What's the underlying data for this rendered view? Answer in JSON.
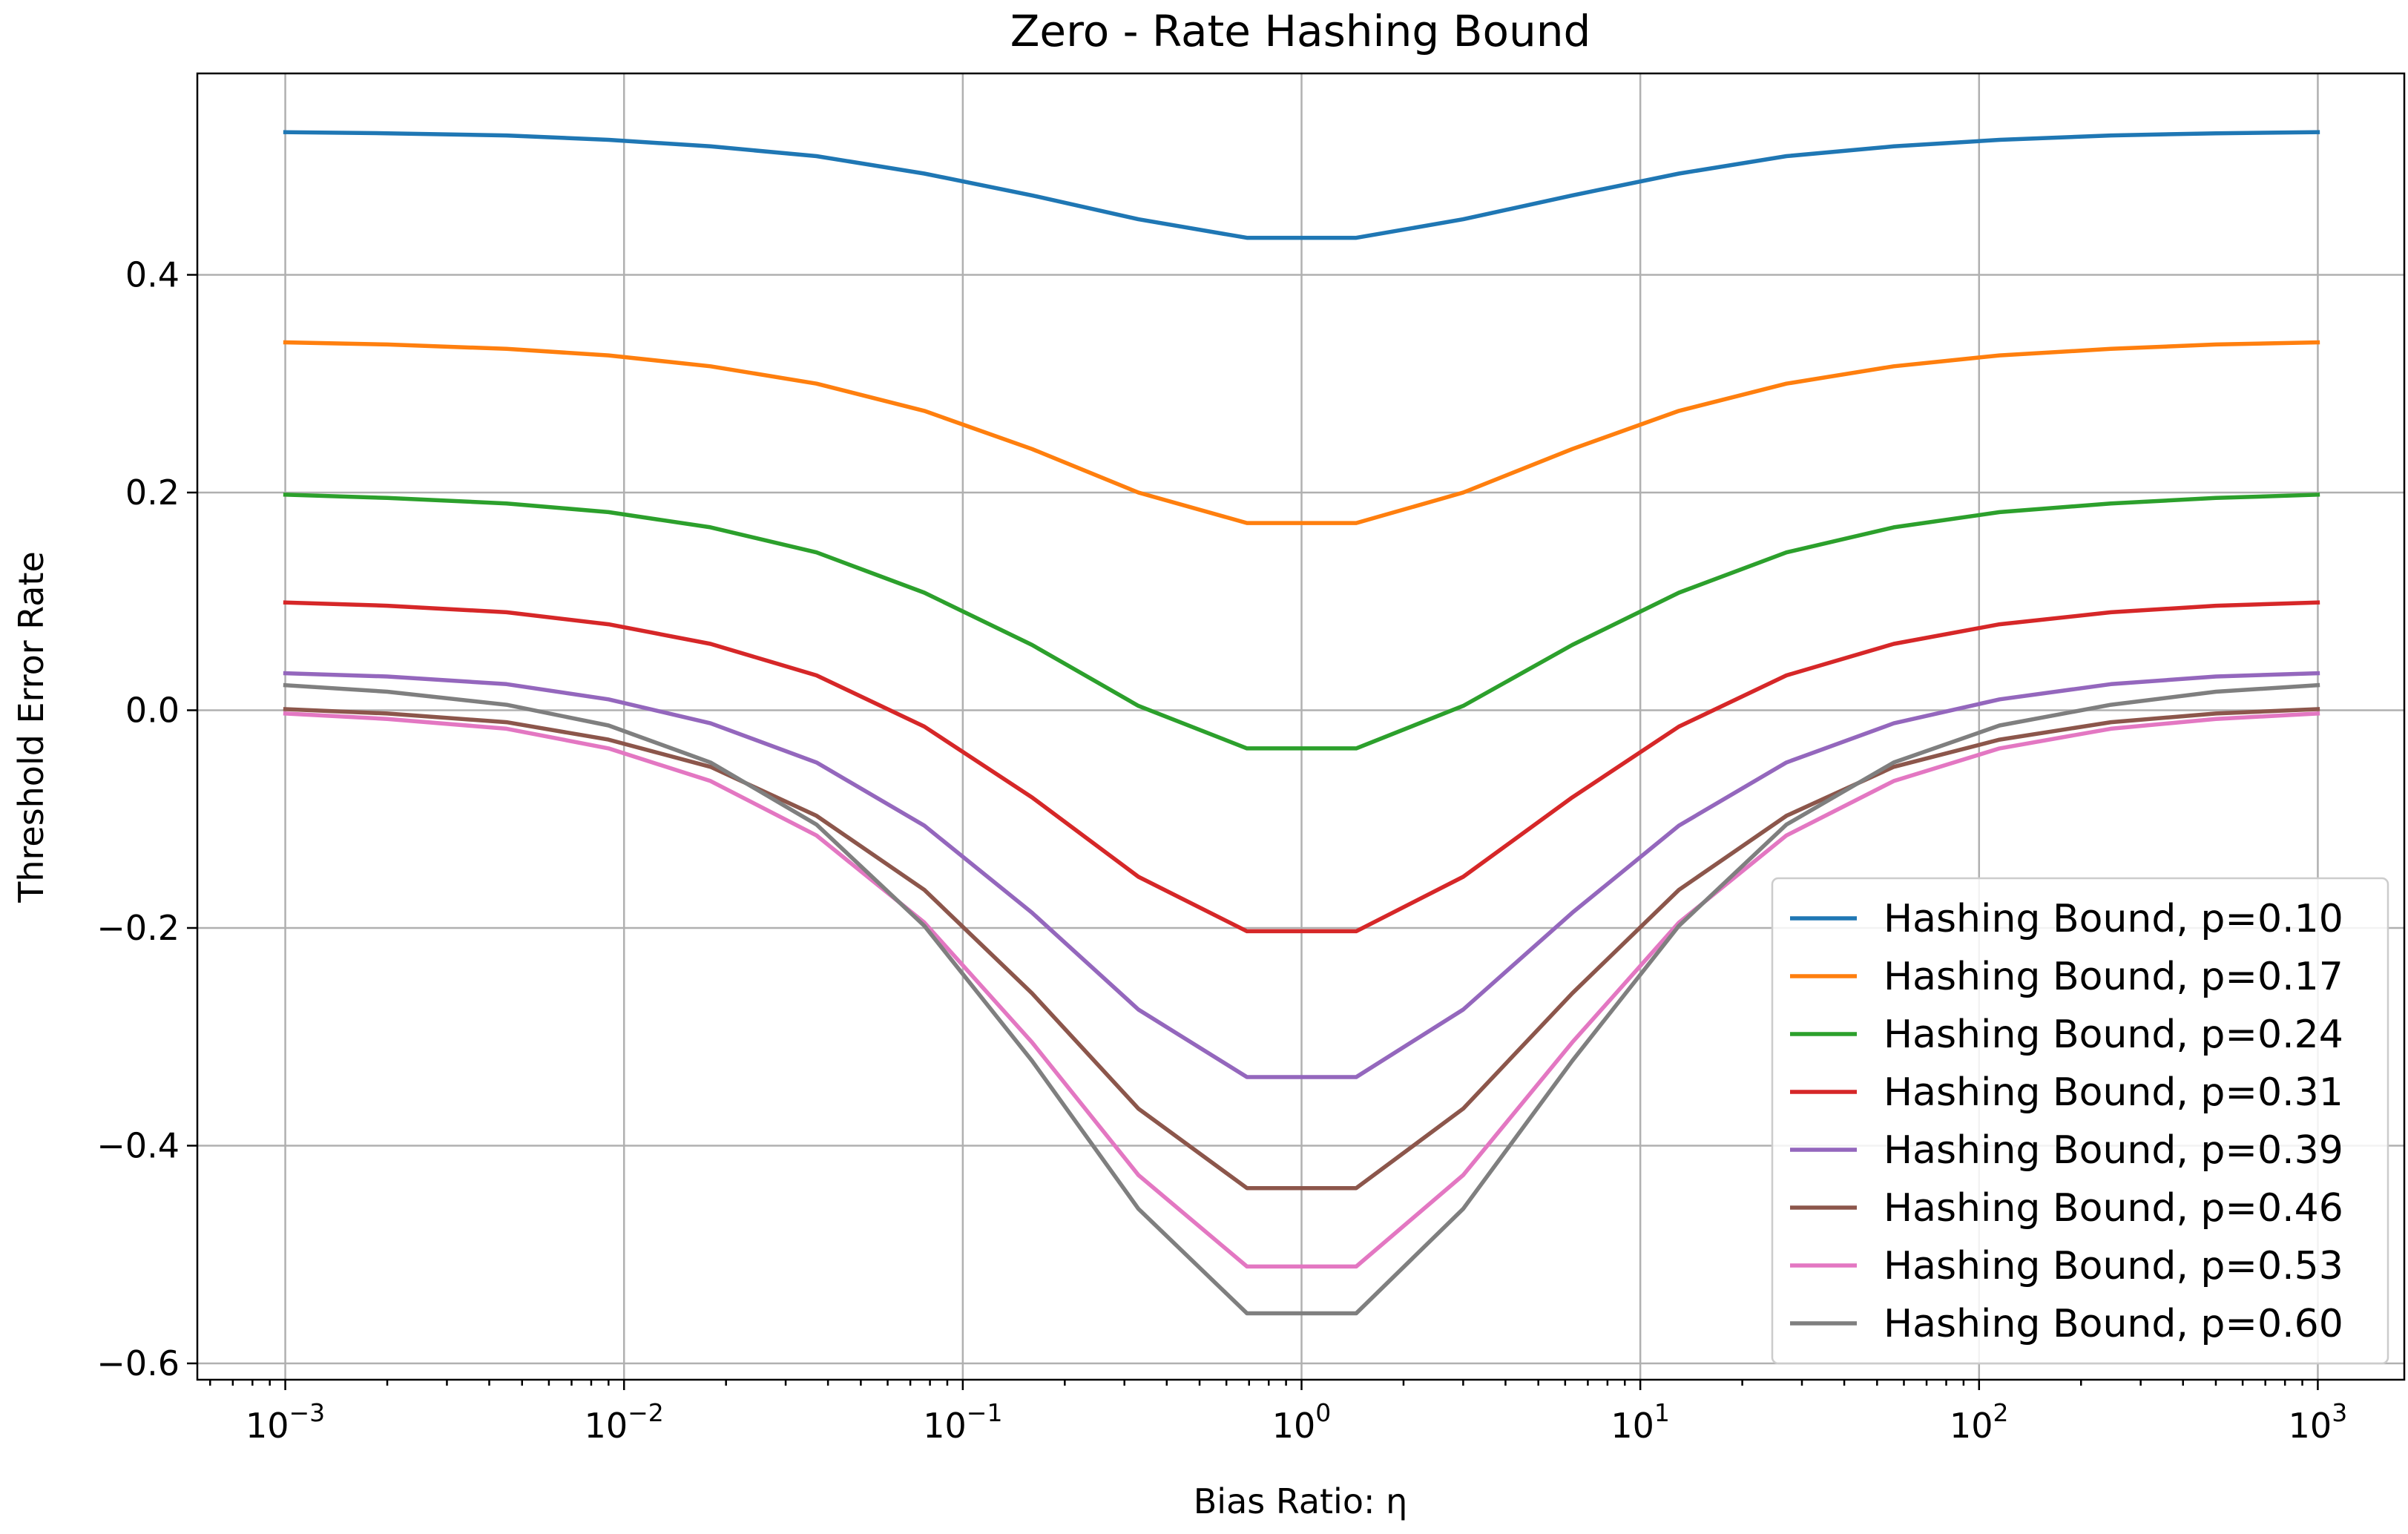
{
  "chart_data": {
    "type": "line",
    "title": "Zero - Rate Hashing Bound",
    "xlabel": "Bias Ratio: η",
    "ylabel": "Threshold Error Rate",
    "xscale": "log",
    "xlim": [
      0.00055,
      1800
    ],
    "ylim": [
      -0.615,
      0.585
    ],
    "grid": true,
    "legend_position": "lower-right",
    "x": [
      0.001,
      0.002,
      0.0045,
      0.009,
      0.018,
      0.037,
      0.077,
      0.16,
      0.33,
      0.69,
      1.45,
      3.0,
      6.3,
      13,
      27,
      56,
      115,
      245,
      500,
      1000
    ],
    "x_ticks": [
      {
        "value": 0.001,
        "base": "10",
        "exp": "−3"
      },
      {
        "value": 0.01,
        "base": "10",
        "exp": "−2"
      },
      {
        "value": 0.1,
        "base": "10",
        "exp": "−1"
      },
      {
        "value": 1,
        "base": "10",
        "exp": "0"
      },
      {
        "value": 10,
        "base": "10",
        "exp": "1"
      },
      {
        "value": 100,
        "base": "10",
        "exp": "2"
      },
      {
        "value": 1000,
        "base": "10",
        "exp": "3"
      }
    ],
    "y_ticks": [
      {
        "value": 0.4,
        "label": "0.4"
      },
      {
        "value": 0.2,
        "label": "0.2"
      },
      {
        "value": 0.0,
        "label": "0.0"
      },
      {
        "value": -0.2,
        "label": "−0.2"
      },
      {
        "value": -0.4,
        "label": "−0.4"
      },
      {
        "value": -0.6,
        "label": "−0.6"
      }
    ],
    "series": [
      {
        "name": "Hashing Bound, p=0.10",
        "color": "#1f77b4",
        "values": [
          0.531,
          0.53,
          0.528,
          0.524,
          0.518,
          0.509,
          0.493,
          0.473,
          0.451,
          0.434,
          0.434,
          0.451,
          0.473,
          0.493,
          0.509,
          0.518,
          0.524,
          0.528,
          0.53,
          0.531
        ]
      },
      {
        "name": "Hashing Bound, p=0.17",
        "color": "#ff7f0e",
        "values": [
          0.338,
          0.336,
          0.332,
          0.326,
          0.316,
          0.3,
          0.275,
          0.24,
          0.2,
          0.172,
          0.172,
          0.2,
          0.24,
          0.275,
          0.3,
          0.316,
          0.326,
          0.332,
          0.336,
          0.338
        ]
      },
      {
        "name": "Hashing Bound, p=0.24",
        "color": "#2ca02c",
        "values": [
          0.198,
          0.195,
          0.19,
          0.182,
          0.168,
          0.145,
          0.108,
          0.06,
          0.004,
          -0.035,
          -0.035,
          0.004,
          0.06,
          0.108,
          0.145,
          0.168,
          0.182,
          0.19,
          0.195,
          0.198
        ]
      },
      {
        "name": "Hashing Bound, p=0.31",
        "color": "#d62728",
        "values": [
          0.099,
          0.096,
          0.09,
          0.079,
          0.061,
          0.032,
          -0.015,
          -0.08,
          -0.153,
          -0.203,
          -0.203,
          -0.153,
          -0.08,
          -0.015,
          0.032,
          0.061,
          0.079,
          0.09,
          0.096,
          0.099
        ]
      },
      {
        "name": "Hashing Bound, p=0.39",
        "color": "#9467bd",
        "values": [
          0.034,
          0.031,
          0.024,
          0.01,
          -0.012,
          -0.048,
          -0.106,
          -0.186,
          -0.275,
          -0.337,
          -0.337,
          -0.275,
          -0.186,
          -0.106,
          -0.048,
          -0.012,
          0.01,
          0.024,
          0.031,
          0.034
        ]
      },
      {
        "name": "Hashing Bound, p=0.46",
        "color": "#8c564b",
        "values": [
          0.001,
          -0.003,
          -0.011,
          -0.027,
          -0.052,
          -0.097,
          -0.165,
          -0.26,
          -0.366,
          -0.439,
          -0.439,
          -0.366,
          -0.26,
          -0.165,
          -0.097,
          -0.052,
          -0.027,
          -0.011,
          -0.003,
          0.001
        ]
      },
      {
        "name": "Hashing Bound, p=0.53",
        "color": "#e377c2",
        "values": [
          -0.003,
          -0.008,
          -0.017,
          -0.035,
          -0.065,
          -0.115,
          -0.195,
          -0.305,
          -0.427,
          -0.511,
          -0.511,
          -0.427,
          -0.305,
          -0.195,
          -0.115,
          -0.065,
          -0.035,
          -0.017,
          -0.008,
          -0.003
        ]
      },
      {
        "name": "Hashing Bound, p=0.60",
        "color": "#7f7f7f",
        "values": [
          0.023,
          0.017,
          0.005,
          -0.014,
          -0.048,
          -0.105,
          -0.198,
          -0.322,
          -0.458,
          -0.554,
          -0.554,
          -0.458,
          -0.322,
          -0.198,
          -0.105,
          -0.048,
          -0.014,
          0.005,
          0.017,
          0.023
        ]
      }
    ]
  }
}
